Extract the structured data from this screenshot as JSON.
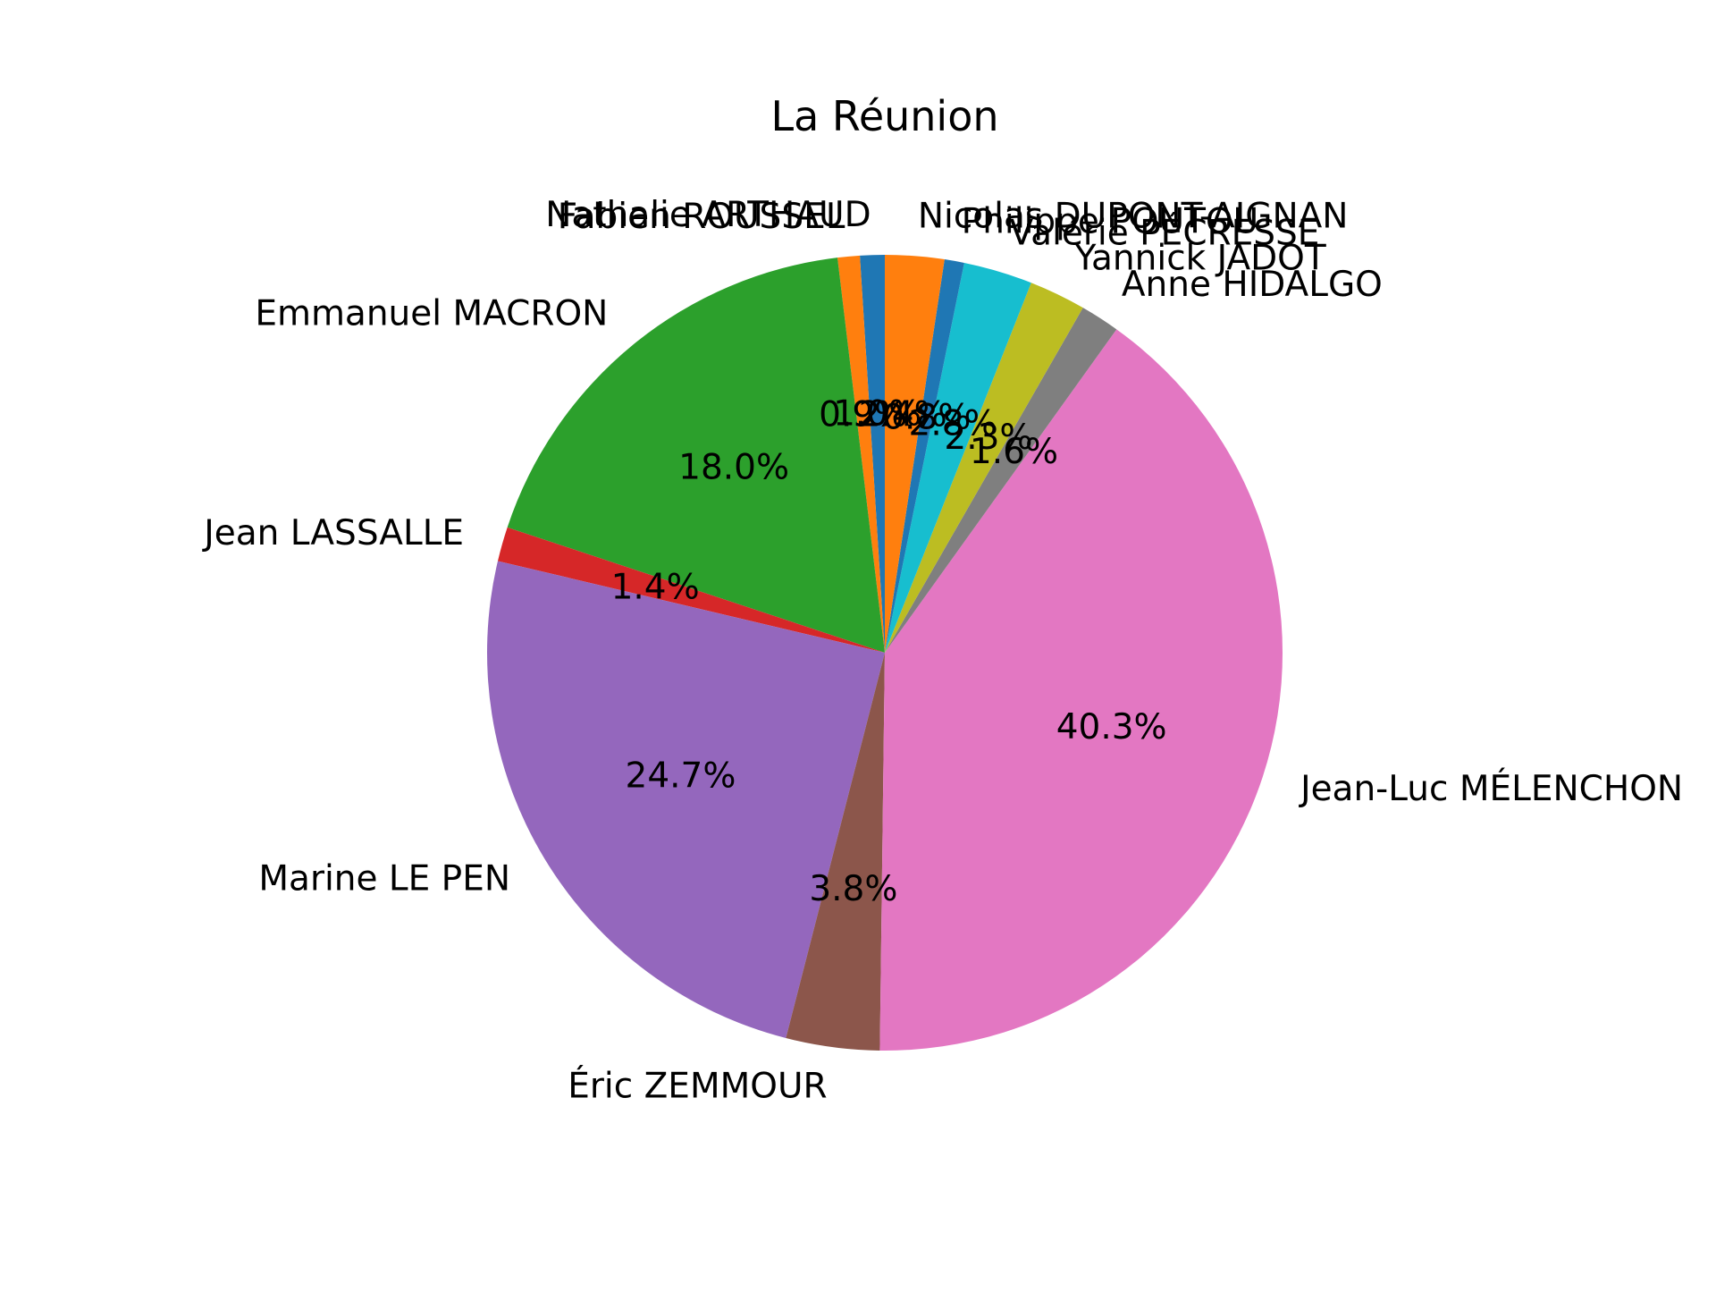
{
  "chart_data": {
    "type": "pie",
    "title": "La Réunion",
    "labels": [
      "Nathalie ARTHAUD",
      "Fabien ROUSSEL",
      "Emmanuel MACRON",
      "Jean LASSALLE",
      "Marine LE PEN",
      "Éric ZEMMOUR",
      "Jean-Luc MÉLENCHON",
      "Anne HIDALGO",
      "Yannick JADOT",
      "Valérie PÉCRESSE",
      "Philippe POUTOU",
      "Nicolas DUPONT-AIGNAN"
    ],
    "values": [
      1.0,
      0.9,
      18.0,
      1.4,
      24.7,
      3.8,
      40.3,
      1.6,
      2.3,
      2.8,
      0.8,
      2.4
    ],
    "pct_labels": [
      "1.0%",
      "0.9%",
      "18.0%",
      "1.4%",
      "24.7%",
      "3.8%",
      "40.3%",
      "1.6%",
      "2.3%",
      "2.8%",
      "0.8%",
      "2.4%"
    ],
    "colors": [
      "#1f77b4",
      "#ff7f0e",
      "#2ca02c",
      "#d62728",
      "#9467bd",
      "#8c564b",
      "#e377c2",
      "#7f7f7f",
      "#bcbd22",
      "#17becf",
      "#1f77b4",
      "#ff7f0e"
    ],
    "start_angle_deg": 90,
    "direction": "counterclockwise"
  }
}
